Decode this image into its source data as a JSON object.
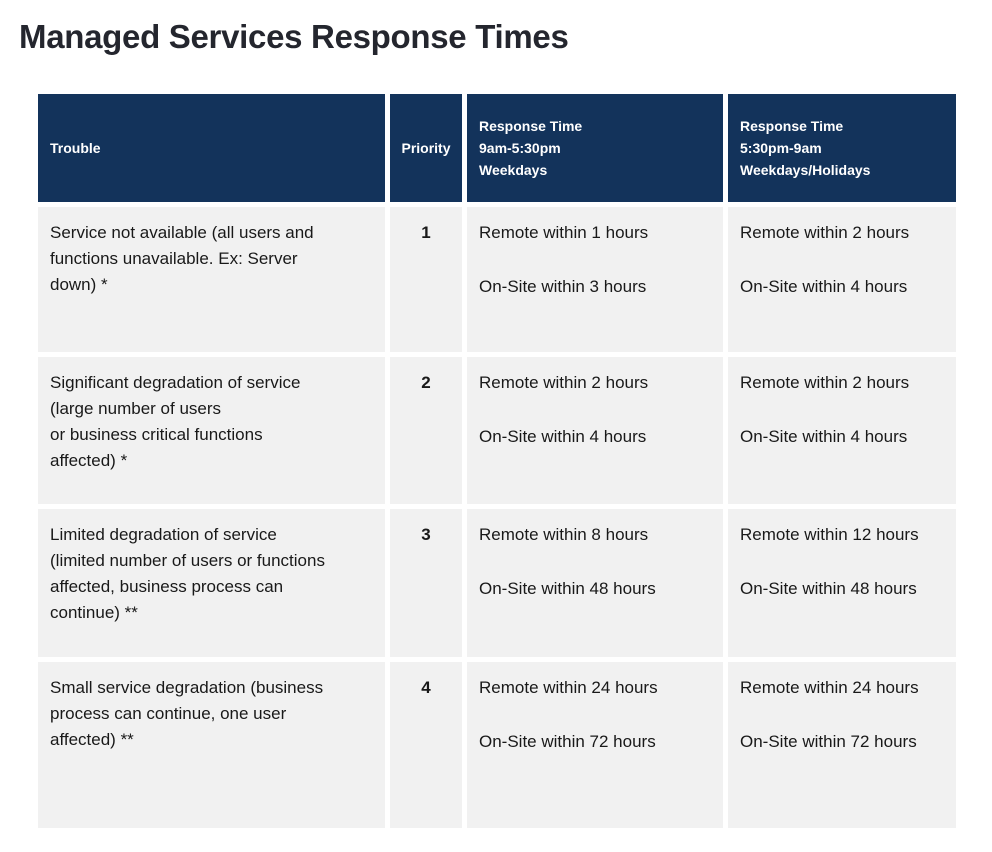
{
  "page": {
    "title": "Managed Services Response Times"
  },
  "colors": {
    "header_bg": "#13335b",
    "header_text": "#ffffff",
    "row_bg": "#f1f1f1",
    "body_text": "#191919",
    "title_text": "#24262e",
    "page_bg": "#ffffff"
  },
  "table": {
    "columns": [
      {
        "label": "Trouble"
      },
      {
        "label": "Priority"
      },
      {
        "label": "Response Time\n9am-5:30pm\nWeekdays"
      },
      {
        "label": "Response Time\n5:30pm-9am\nWeekdays/Holidays"
      }
    ],
    "rows": [
      {
        "trouble": "Service not available (all users and\nfunctions unavailable. Ex: Server\ndown) *",
        "priority": "1",
        "weekday_remote": "Remote within 1 hours",
        "weekday_onsite": "On-Site within 3 hours",
        "afterhours_remote": "Remote within 2 hours",
        "afterhours_onsite": "On-Site within 4 hours"
      },
      {
        "trouble": "Significant degradation of service\n(large number of users\nor business critical functions\naffected) *",
        "priority": "2",
        "weekday_remote": "Remote within 2 hours",
        "weekday_onsite": "On-Site within 4 hours",
        "afterhours_remote": "Remote within 2 hours",
        "afterhours_onsite": "On-Site within 4 hours"
      },
      {
        "trouble": "Limited degradation of service\n(limited number of users or functions\naffected, business process can\ncontinue) **",
        "priority": "3",
        "weekday_remote": "Remote within 8 hours",
        "weekday_onsite": "On-Site within 48 hours",
        "afterhours_remote": "Remote within 12 hours",
        "afterhours_onsite": "On-Site within 48 hours"
      },
      {
        "trouble": "Small service degradation (business\nprocess can continue, one user\naffected) **",
        "priority": "4",
        "weekday_remote": "Remote within 24 hours",
        "weekday_onsite": "On-Site within 72 hours",
        "afterhours_remote": "Remote within 24 hours",
        "afterhours_onsite": "On-Site within 72 hours"
      }
    ]
  }
}
